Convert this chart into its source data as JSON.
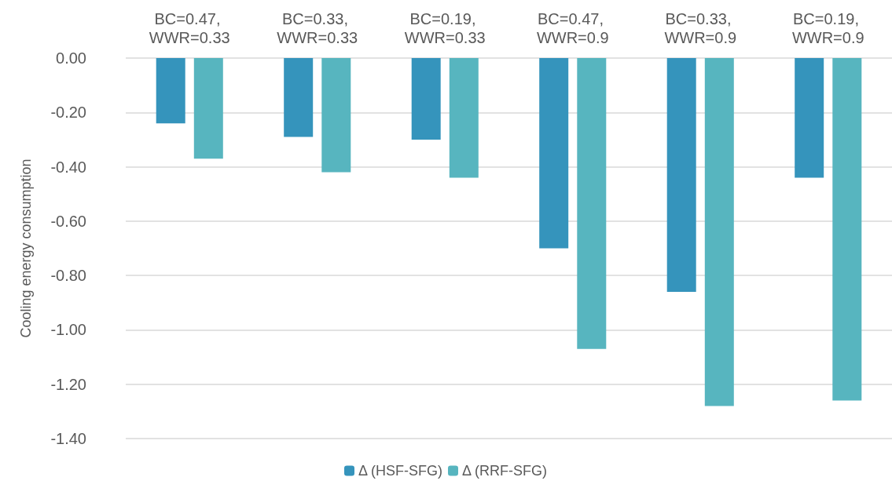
{
  "chart_data": {
    "type": "bar",
    "ylabel": "Cooling energy consumption",
    "categories": [
      "BC=0.47, WWR=0.33",
      "BC=0.33, WWR=0.33",
      "BC=0.19, WWR=0.33",
      "BC=0.47, WWR=0.9",
      "BC=0.33, WWR=0.9",
      "BC=0.19, WWR=0.9"
    ],
    "series": [
      {
        "name": "Δ (HSF-SFG)",
        "color": "#3594bc",
        "values": [
          -0.24,
          -0.29,
          -0.3,
          -0.7,
          -0.86,
          -0.44
        ]
      },
      {
        "name": "Δ (RRF-SFG)",
        "color": "#57b5bf",
        "values": [
          -0.37,
          -0.42,
          -0.44,
          -1.07,
          -1.28,
          -1.26
        ]
      }
    ],
    "ylim": [
      -1.4,
      0
    ],
    "yticks": [
      {
        "value": -1.4,
        "label": "-1.40"
      },
      {
        "value": -1.2,
        "label": "-1.20"
      },
      {
        "value": -1.0,
        "label": "-1.00"
      },
      {
        "value": -0.8,
        "label": "-0.80"
      },
      {
        "value": -0.6,
        "label": "-0.60"
      },
      {
        "value": -0.4,
        "label": "-0.40"
      },
      {
        "value": -0.2,
        "label": "-0.20"
      },
      {
        "value": 0,
        "label": "0.00"
      }
    ],
    "grid": "y",
    "legend": "bottom"
  }
}
